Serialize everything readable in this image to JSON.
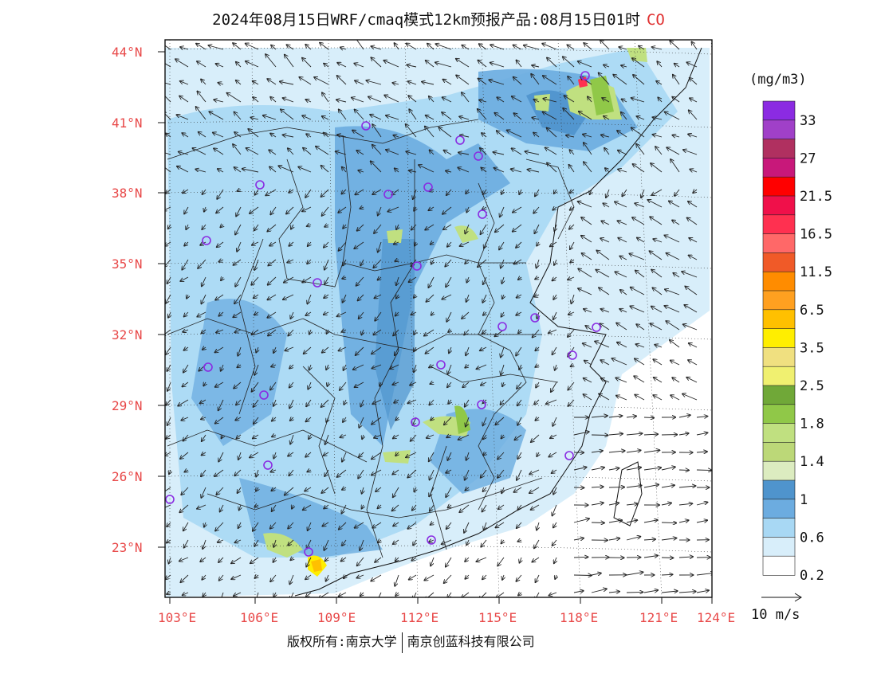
{
  "header": {
    "title": "2024年08月15日WRF/cmaq模式12km预报产品:08月15日01时",
    "species": "CO"
  },
  "map": {
    "lat_labels": [
      "44°N",
      "41°N",
      "38°N",
      "35°N",
      "32°N",
      "29°N",
      "26°N",
      "23°N"
    ],
    "lon_labels": [
      "103°E",
      "106°E",
      "109°E",
      "112°E",
      "115°E",
      "118°E",
      "121°E",
      "124°E"
    ],
    "city_markers": 26,
    "colors": {
      "axis_label": "#e84848",
      "marker": "#8a2be2"
    }
  },
  "legend": {
    "unit": "(mg/m3)",
    "colors": [
      "#8b2be2",
      "#a040c8",
      "#b03060",
      "#c8187a",
      "#ff0000",
      "#f0104a",
      "#ff3050",
      "#ff6868",
      "#f05a28",
      "#ff8c00",
      "#ffa020",
      "#ffc000",
      "#ffee00",
      "#f0e080",
      "#f0f070",
      "#70a838",
      "#90c848",
      "#c0e080",
      "#bcd878",
      "#dcecc0",
      "#4f94cd",
      "#6cace0",
      "#a8d8f4",
      "#d8eefa",
      "#ffffff"
    ],
    "labels": [
      "33",
      "27",
      "21.5",
      "16.5",
      "11.5",
      "6.5",
      "3.5",
      "2.5",
      "1.8",
      "1.4",
      "1",
      "0.6",
      "0.2"
    ],
    "wind_ref": "10 m/s"
  },
  "footer": {
    "copyright_left": "版权所有:南京大学",
    "copyright_right": "南京创蓝科技有限公司"
  }
}
